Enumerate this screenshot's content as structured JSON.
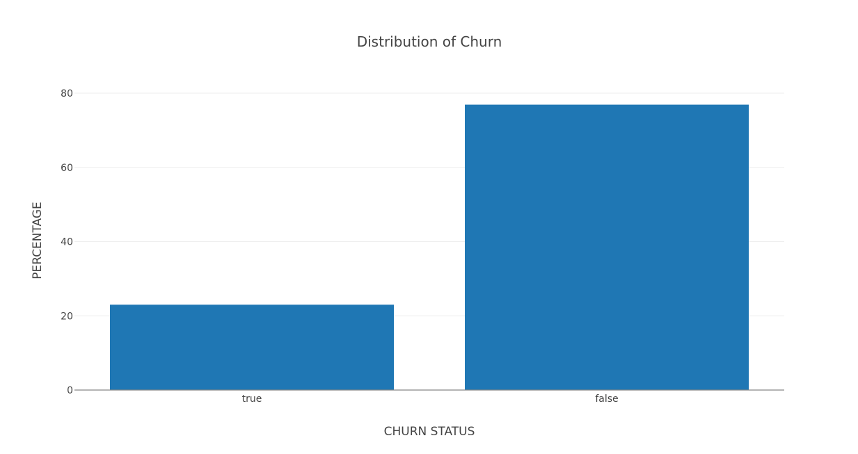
{
  "chart_data": {
    "type": "bar",
    "title": "Distribution of Churn",
    "xlabel": "CHURN STATUS",
    "ylabel": "PERCENTAGE",
    "categories": [
      "true",
      "false"
    ],
    "values": [
      23.0,
      76.9
    ],
    "ylim": [
      0,
      80
    ],
    "yticks": [
      0,
      20,
      40,
      60,
      80
    ],
    "ytick_labels": [
      "0",
      "20",
      "40",
      "60",
      "80"
    ],
    "grid": true,
    "legend": false,
    "bar_color": "#1f77b4"
  }
}
